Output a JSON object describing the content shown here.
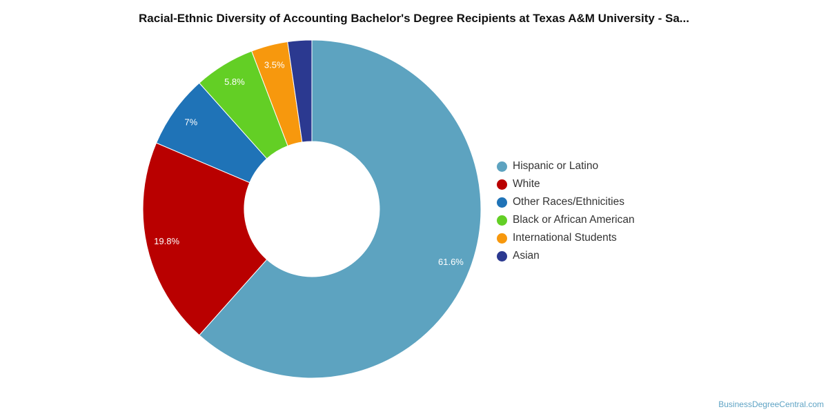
{
  "chart_data": {
    "type": "pie",
    "variant": "donut",
    "title": "Racial-Ethnic Diversity of Accounting Bachelor's Degree Recipients at Texas A&M University - Sa...",
    "legend_position": "right",
    "slices": [
      {
        "label": "Hispanic or Latino",
        "value": 61.6,
        "display": "61.6%",
        "color": "#5da3c0"
      },
      {
        "label": "White",
        "value": 19.8,
        "display": "19.8%",
        "color": "#b90000"
      },
      {
        "label": "Other Races/Ethnicities",
        "value": 7.0,
        "display": "7%",
        "color": "#1f73b7"
      },
      {
        "label": "Black or African American",
        "value": 5.8,
        "display": "5.8%",
        "color": "#63cf25"
      },
      {
        "label": "International Students",
        "value": 3.5,
        "display": "3.5%",
        "color": "#f7980d"
      },
      {
        "label": "Asian",
        "value": 2.3,
        "display": "",
        "color": "#2b3990"
      }
    ]
  },
  "credit": "BusinessDegreeCentral.com"
}
